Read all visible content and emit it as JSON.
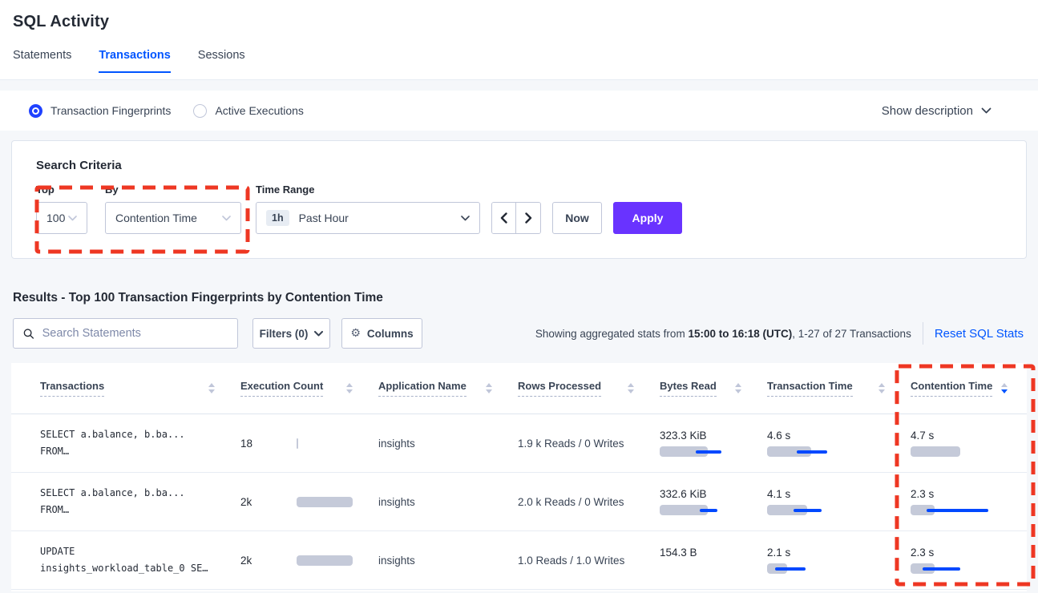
{
  "page_title": "SQL Activity",
  "tabs": {
    "statements": "Statements",
    "transactions": "Transactions",
    "sessions": "Sessions",
    "active": "Transactions"
  },
  "view_toggle": {
    "fingerprints_label": "Transaction Fingerprints",
    "active_executions_label": "Active Executions",
    "show_description_label": "Show description"
  },
  "search_criteria": {
    "heading": "Search Criteria",
    "top_label": "Top",
    "top_value": "100",
    "by_label": "By",
    "by_value": "Contention Time",
    "time_range_label": "Time Range",
    "time_range_badge": "1h",
    "time_range_value": "Past Hour",
    "now_button": "Now",
    "apply_button": "Apply"
  },
  "results": {
    "heading": "Results - Top 100 Transaction Fingerprints by Contention Time",
    "search_placeholder": "Search Statements",
    "filters_button": "Filters (0)",
    "columns_button": "Columns",
    "stats_text_prefix": "Showing aggregated stats from ",
    "stats_text_bold": "15:00 to 16:18 (UTC)",
    "stats_text_suffix": ", 1-27 of 27 Transactions",
    "reset_link": "Reset SQL Stats"
  },
  "table": {
    "columns": [
      "Transactions",
      "Execution Count",
      "Application Name",
      "Rows Processed",
      "Bytes Read",
      "Transaction Time",
      "Contention Time"
    ],
    "sort": {
      "column": "Contention Time",
      "direction": "desc"
    },
    "rows": [
      {
        "query_line1": "SELECT a.balance, b.ba...",
        "query_line2": "FROM…",
        "execution_count": "18",
        "execution_count_bar": 2,
        "application_name": "insights",
        "rows_processed": "1.9 k Reads / 0 Writes",
        "bytes_read": {
          "value": "323.3 KiB",
          "bar": 60,
          "line": [
            45,
            77
          ]
        },
        "transaction_time": {
          "value": "4.6 s",
          "bar": 55,
          "line": [
            37,
            75
          ]
        },
        "contention_time": {
          "value": "4.7 s",
          "bar": 62,
          "line": null
        }
      },
      {
        "query_line1": "SELECT a.balance, b.ba...",
        "query_line2": "FROM…",
        "execution_count": "2k",
        "execution_count_bar": 70,
        "application_name": "insights",
        "rows_processed": "2.0 k Reads / 0 Writes",
        "bytes_read": {
          "value": "332.6 KiB",
          "bar": 60,
          "line": [
            50,
            72
          ]
        },
        "transaction_time": {
          "value": "4.1 s",
          "bar": 50,
          "line": [
            33,
            68
          ]
        },
        "contention_time": {
          "value": "2.3 s",
          "bar": 30,
          "line": [
            20,
            97
          ]
        }
      },
      {
        "query_line1": "UPDATE",
        "query_line2": "insights_workload_table_0 SE…",
        "execution_count": "2k",
        "execution_count_bar": 70,
        "application_name": "insights",
        "rows_processed": "1.0 Reads / 1.0 Writes",
        "bytes_read": {
          "value": "154.3 B",
          "bar": 0,
          "line": null
        },
        "transaction_time": {
          "value": "2.1 s",
          "bar": 25,
          "line": [
            10,
            48
          ]
        },
        "contention_time": {
          "value": "2.3 s",
          "bar": 30,
          "line": [
            15,
            62
          ]
        }
      }
    ]
  },
  "colors": {
    "accent_blue": "#0055ff",
    "apply_purple": "#6933ff",
    "bar_gray": "#c5cad9",
    "bar_line_blue": "#0048ff",
    "annotation_red": "#ee3723"
  }
}
